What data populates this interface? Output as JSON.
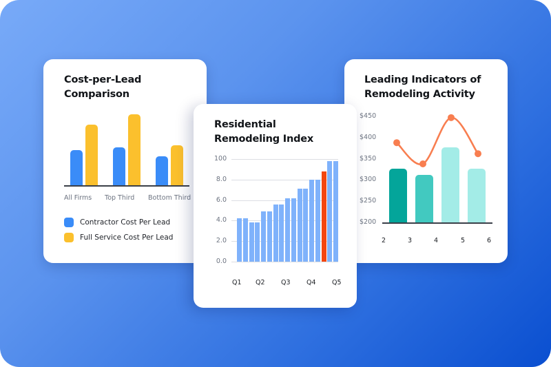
{
  "background": {
    "gradient_start": "#78aaf8",
    "gradient_end": "#0a4fd0"
  },
  "cards": {
    "cost_per_lead": {
      "title_line1": "Cost-per-Lead",
      "title_line2": "Comparison",
      "legend": [
        {
          "label": "Contractor Cost Per Lead",
          "color": "#3a8cf8"
        },
        {
          "label": "Full Service Cost Per Lead",
          "color": "#fbc02d"
        }
      ],
      "categories": [
        "All Firms",
        "Top Third",
        "Bottom Third"
      ]
    },
    "remodeling_index": {
      "title_line1": "Residential",
      "title_line2": "Remodeling Index",
      "y_ticks": [
        "100",
        "8.0",
        "6.0",
        "4.0",
        "2.0",
        "0.0"
      ],
      "x_ticks": [
        "Q1",
        "Q2",
        "Q3",
        "Q4",
        "Q5"
      ]
    },
    "leading_indicators": {
      "title_line1": "Leading Indicators of",
      "title_line2": "Remodeling Activity",
      "y_ticks": [
        "$450",
        "$400",
        "$350",
        "$300",
        "$250",
        "$200"
      ],
      "x_ticks": [
        "2",
        "3",
        "4",
        "5",
        "6"
      ]
    }
  },
  "chart_data": [
    {
      "type": "bar",
      "title": "Cost-per-Lead Comparison",
      "categories": [
        "All Firms",
        "Top Third",
        "Bottom Third"
      ],
      "series": [
        {
          "name": "Contractor Cost Per Lead",
          "color": "#3a8cf8",
          "values": [
            51,
            55,
            42
          ]
        },
        {
          "name": "Full Service Cost Per Lead",
          "color": "#fbc02d",
          "values": [
            88,
            103,
            58
          ]
        }
      ],
      "xlabel": "",
      "ylabel": "",
      "grid": false,
      "legend_position": "bottom",
      "note": "No y-axis shown; values are relative bar heights in pixels"
    },
    {
      "type": "bar",
      "title": "Residential Remodeling Index",
      "x": [
        "Q1",
        "",
        "Q2",
        "",
        "",
        "",
        "Q3",
        "",
        "",
        "",
        "Q4",
        "",
        "",
        "",
        "",
        "Q5",
        ""
      ],
      "values": [
        4.2,
        4.2,
        3.8,
        3.8,
        4.9,
        4.9,
        5.6,
        5.6,
        6.2,
        6.2,
        7.1,
        7.1,
        8.0,
        8.0,
        8.8,
        9.8,
        9.8
      ],
      "highlight_index": 14,
      "colors": {
        "default": "#7fb2fb",
        "highlight": "#f4470f"
      },
      "y_tick_labels": [
        "0.0",
        "2.0",
        "4.0",
        "6.0",
        "8.0",
        "100"
      ],
      "x_tick_labels": [
        "Q1",
        "Q2",
        "Q3",
        "Q4",
        "Q5"
      ],
      "ylim": [
        0,
        10
      ],
      "grid": true
    },
    {
      "type": "bar+line",
      "title": "Leading Indicators of Remodeling Activity",
      "x_tick_labels": [
        "2",
        "3",
        "4",
        "5",
        "6"
      ],
      "bars": {
        "values": [
          327,
          312,
          377,
          327
        ],
        "colors": [
          "#04a59a",
          "#42c9c0",
          "#a3ece7",
          "#a3ece7"
        ]
      },
      "line": {
        "values": [
          388,
          338,
          447,
          362
        ],
        "color": "#f87e50"
      },
      "y_tick_labels": [
        "$200",
        "$250",
        "$300",
        "$350",
        "$400",
        "$450"
      ],
      "ylim": [
        200,
        450
      ],
      "grid": false
    }
  ]
}
